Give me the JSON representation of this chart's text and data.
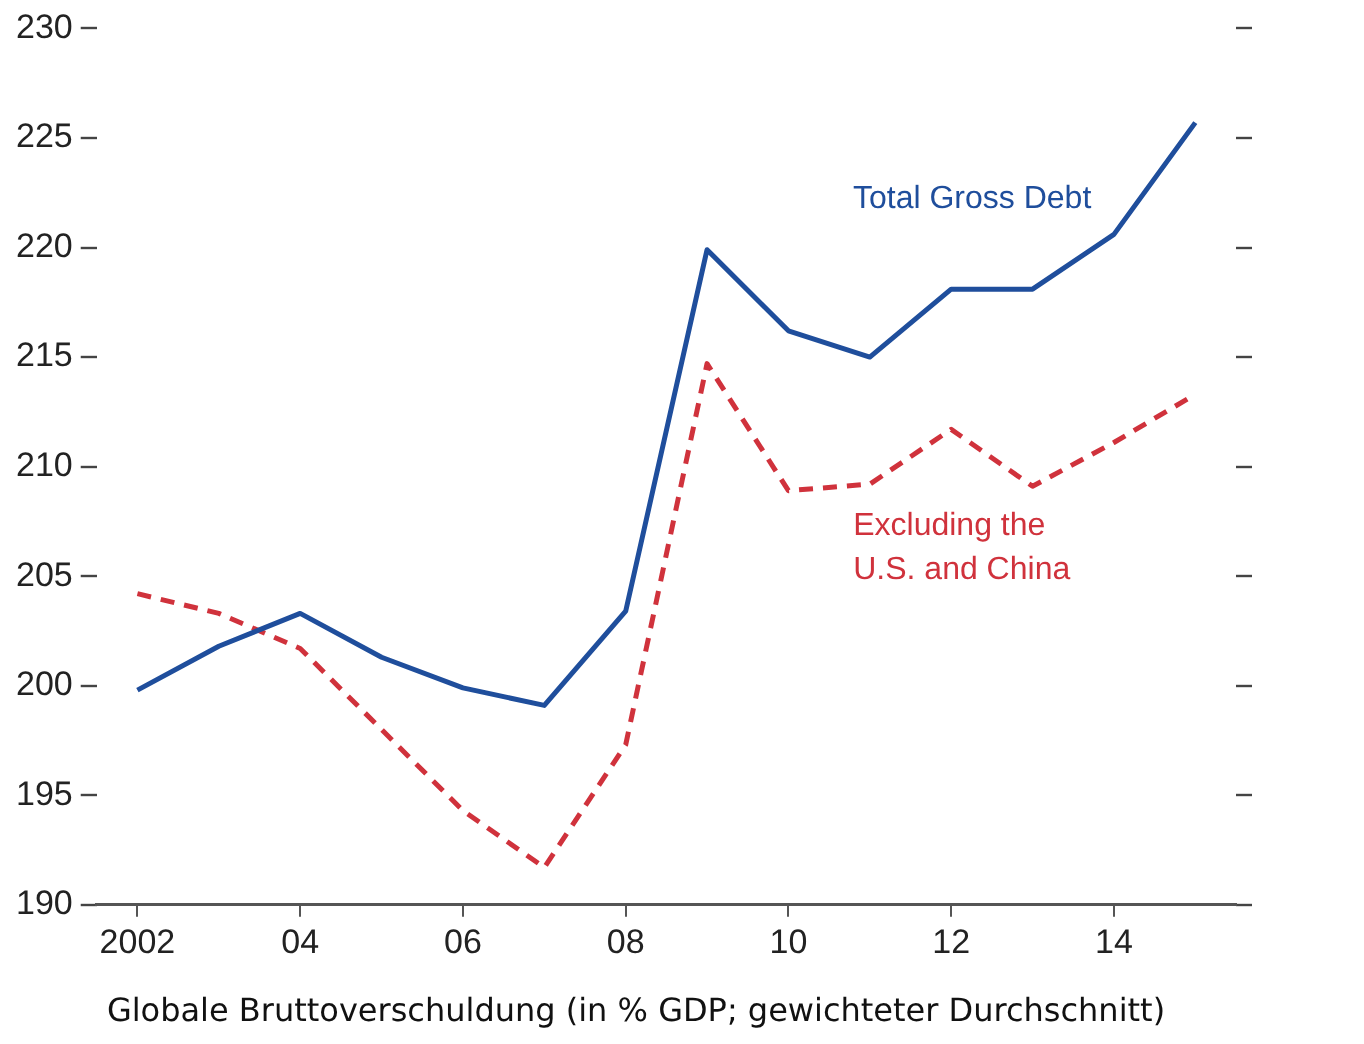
{
  "chart_data": {
    "type": "line",
    "title": "Globale Bruttoverschuldung (in % GDP; gewichteter Durchschnitt)",
    "x": [
      2002,
      2003,
      2004,
      2005,
      2006,
      2007,
      2008,
      2009,
      2010,
      2011,
      2012,
      2013,
      2014,
      2015
    ],
    "series": [
      {
        "name": "Total Gross Debt",
        "color": "#1f4e9c",
        "line_style": "solid",
        "values": [
          199.8,
          201.8,
          203.3,
          201.3,
          199.9,
          199.1,
          203.4,
          219.9,
          216.2,
          215.0,
          218.1,
          218.1,
          220.6,
          225.7
        ]
      },
      {
        "name": "Excluding the U.S. and China",
        "color": "#d0323c",
        "line_style": "dashed",
        "values": [
          204.2,
          203.3,
          201.7,
          198.0,
          194.3,
          191.7,
          197.3,
          214.7,
          208.9,
          209.2,
          211.7,
          209.1,
          211.1,
          213.3
        ]
      }
    ],
    "xlim": [
      2001.5,
      2015.5
    ],
    "xticks": [
      {
        "value": 2002,
        "label": "2002"
      },
      {
        "value": 2004,
        "label": "04"
      },
      {
        "value": 2006,
        "label": "06"
      },
      {
        "value": 2008,
        "label": "08"
      },
      {
        "value": 2010,
        "label": "10"
      },
      {
        "value": 2012,
        "label": "12"
      },
      {
        "value": 2014,
        "label": "14"
      }
    ],
    "ylim": [
      190,
      230
    ],
    "yticks": [
      190,
      195,
      200,
      205,
      210,
      215,
      220,
      225,
      230
    ],
    "grid": false,
    "legend": false,
    "marker": "none"
  }
}
